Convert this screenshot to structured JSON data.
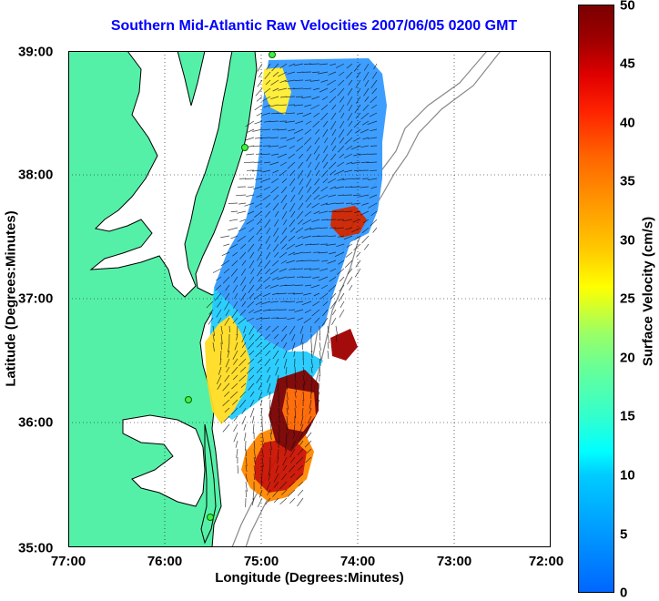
{
  "title": "Southern Mid-Atlantic Raw Velocities 2007/06/05 0200 GMT",
  "x_axis": {
    "label": "Longitude (Degrees:Minutes)",
    "ticks": [
      "77:00",
      "76:00",
      "75:00",
      "74:00",
      "73:00",
      "72:00"
    ]
  },
  "y_axis": {
    "label": "Latitude (Degrees:Minutes)",
    "ticks": [
      "39:00",
      "38:00",
      "37:00",
      "36:00",
      "35:00"
    ]
  },
  "colorbar": {
    "label": "Surface Velocity (cm/s)",
    "ticks": [
      "50",
      "45",
      "40",
      "35",
      "30",
      "25",
      "20",
      "15",
      "10",
      "5",
      "0"
    ],
    "min": 0,
    "max": 50
  },
  "colors": {
    "land": "#55f0a8",
    "title": "#0000ff",
    "coast_outline": "#000000",
    "bathymetry": "#888888"
  },
  "stations": [
    {
      "lon": -75.1,
      "lat": 38.97
    },
    {
      "lon": -75.15,
      "lat": 38.22
    },
    {
      "lon": -75.72,
      "lat": 36.17
    },
    {
      "lon": -75.45,
      "lat": 35.22
    }
  ]
}
